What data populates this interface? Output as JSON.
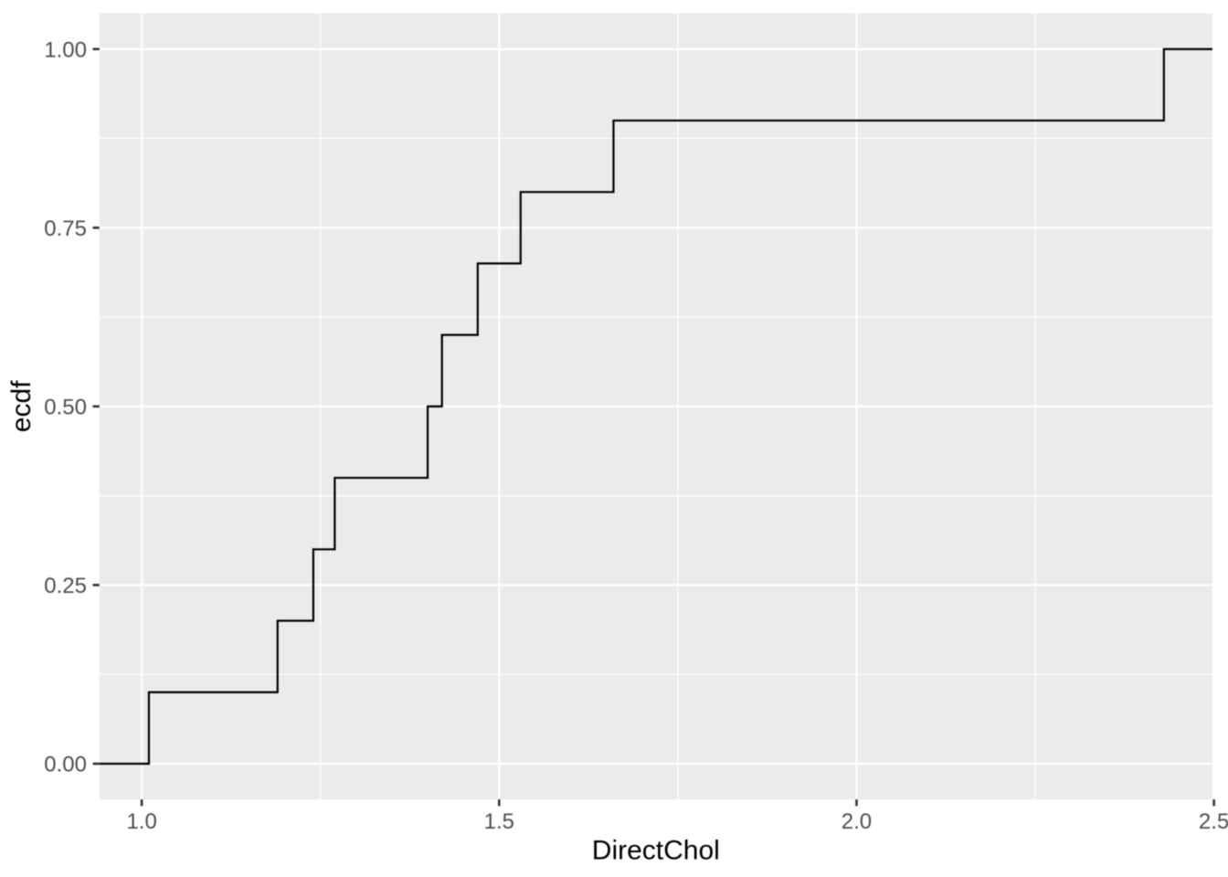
{
  "chart_data": {
    "type": "line",
    "subtype": "ecdf-step",
    "title": "",
    "xlabel": "DirectChol",
    "ylabel": "ecdf",
    "x": [
      1.01,
      1.19,
      1.24,
      1.27,
      1.4,
      1.42,
      1.47,
      1.53,
      1.66,
      2.43
    ],
    "ecdf_values": [
      0.1,
      0.2,
      0.3,
      0.4,
      0.5,
      0.6,
      0.7,
      0.8,
      0.9,
      1.0
    ],
    "pad_to_panel_edges": true,
    "xlim": [
      0.9407,
      2.4978
    ],
    "ylim": [
      -0.05,
      1.05
    ],
    "x_ticks": {
      "values": [
        1.0,
        1.5,
        2.0,
        2.5
      ],
      "labels": [
        "1.0",
        "1.5",
        "2.0",
        "2.5"
      ]
    },
    "y_ticks": {
      "values": [
        0.0,
        0.25,
        0.5,
        0.75,
        1.0
      ],
      "labels": [
        "0.00",
        "0.25",
        "0.50",
        "0.75",
        "1.00"
      ]
    },
    "x_minor": [
      1.25,
      1.75,
      2.25
    ],
    "y_minor": [
      0.125,
      0.375,
      0.625,
      0.875
    ],
    "grid": "on",
    "legend": "none",
    "colors": {
      "line": "#000000",
      "panel_background": "#EBEBEB",
      "grid_major": "#FFFFFF",
      "grid_minor": "#FFFFFF",
      "tick_mark": "#333333",
      "tick_label": "#4D4D4D",
      "axis_title": "#000000",
      "background": "#FFFFFF"
    }
  }
}
